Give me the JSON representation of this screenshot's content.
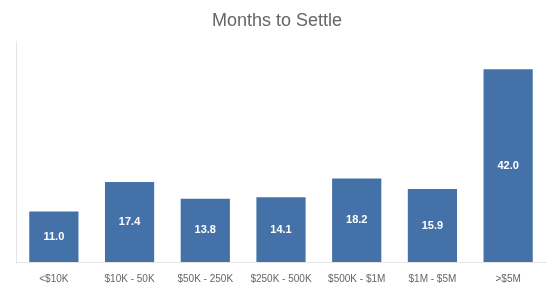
{
  "chart_data": {
    "type": "bar",
    "title": "Months to Settle",
    "categories": [
      "<$10K",
      "$10K - 50K",
      "$50K - 250K",
      "$250K - 500K",
      "$500K - $1M",
      "$1M - $5M",
      ">$5M"
    ],
    "values": [
      11.0,
      17.4,
      13.8,
      14.1,
      18.2,
      15.9,
      42.0
    ],
    "value_labels": [
      "11.0",
      "17.4",
      "13.8",
      "14.1",
      "18.2",
      "15.9",
      "42.0"
    ],
    "color": "#4472a8",
    "ylim": [
      0,
      48
    ],
    "grid": false,
    "data_labels": true,
    "tick_labels": "x"
  }
}
